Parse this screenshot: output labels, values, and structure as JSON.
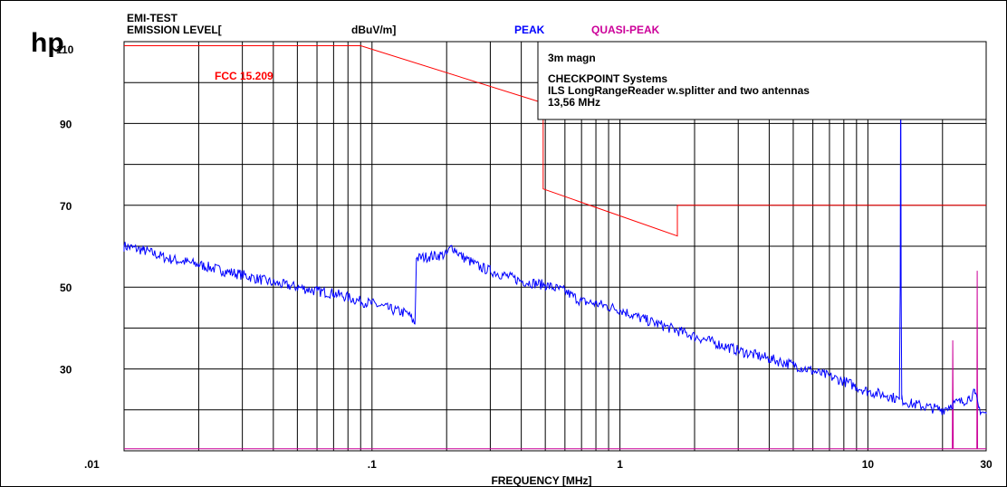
{
  "logo": "hp",
  "header": {
    "test_name": "EMI-TEST",
    "level_label": "EMISSION LEVEL[",
    "unit_label": "dBuV/m]",
    "peak_label": "PEAK",
    "qpeak_label": "QUASI-PEAK"
  },
  "colors": {
    "peak": "#0000ff",
    "quasi_peak": "#cc0099",
    "limit": "#ff0000",
    "grid": "#000000"
  },
  "info": {
    "line1": "3m magn",
    "line2": "CHECKPOINT Systems",
    "line3": "ILS LongRangeReader w.splitter and two antennas",
    "line4": "13,56 MHz"
  },
  "limit_label": "FCC 15.209",
  "chart_data": {
    "type": "line",
    "title": "EMI-TEST",
    "xlabel": "FREQUENCY [MHz]",
    "ylabel": "EMISSION LEVEL[ dBuV/m]",
    "x_scale": "log",
    "xlim": [
      0.01,
      30
    ],
    "ylim": [
      10,
      110
    ],
    "y_ticks": [
      "30",
      "50",
      "70",
      "90",
      "110"
    ],
    "x_ticks": [
      {
        "value": 0.01,
        "label": ".01"
      },
      {
        "value": 0.1,
        "label": ".1"
      },
      {
        "value": 1,
        "label": "1"
      },
      {
        "value": 10,
        "label": "10"
      },
      {
        "value": 30,
        "label": "30"
      }
    ],
    "grid": true,
    "series": [
      {
        "name": "PEAK",
        "x": [
          0.01,
          0.012,
          0.015,
          0.02,
          0.025,
          0.03,
          0.04,
          0.05,
          0.06,
          0.07,
          0.08,
          0.09,
          0.1,
          0.12,
          0.14,
          0.149,
          0.151,
          0.17,
          0.2,
          0.21,
          0.23,
          0.27,
          0.3,
          0.4,
          0.5,
          0.6,
          0.7,
          0.8,
          1.0,
          1.2,
          1.5,
          2.0,
          3.0,
          4.0,
          5.0,
          6.0,
          8.0,
          10.0,
          12.0,
          13.4,
          13.5,
          13.56,
          13.62,
          13.7,
          15.0,
          18.0,
          20.0,
          22.0,
          24.0,
          25.5,
          27.0,
          28.0,
          29.0,
          30.0
        ],
        "y": [
          60,
          59,
          57,
          55.5,
          54,
          53,
          51,
          50,
          49,
          48.5,
          47.5,
          46.5,
          46,
          44.5,
          43.5,
          41,
          57,
          57.5,
          58,
          60,
          57.5,
          55,
          54,
          51.5,
          50.5,
          49,
          46.5,
          46,
          44.5,
          42.5,
          40.5,
          38,
          34.5,
          32.5,
          31,
          29.5,
          27,
          24.5,
          23.5,
          22.5,
          50,
          108,
          50,
          22.5,
          21.5,
          20.5,
          20,
          21.5,
          22,
          23,
          24,
          20.5,
          19.5,
          19
        ]
      },
      {
        "name": "QUASI-PEAK",
        "x": [
          0.01,
          21.5,
          21.9,
          22.0,
          22.1,
          22.5,
          27.0,
          27.5,
          27.6,
          27.7,
          28.2,
          30.0
        ],
        "y": [
          10.5,
          10.5,
          10.5,
          37,
          10.5,
          10.5,
          10.5,
          10.5,
          54,
          10.5,
          10.5,
          10.5
        ]
      },
      {
        "name": "FCC 15.209",
        "x": [
          0.01,
          0.09,
          0.49,
          0.49,
          1.705,
          1.705,
          30
        ],
        "y": [
          109,
          109,
          95,
          74,
          62.5,
          70,
          70
        ]
      }
    ]
  }
}
